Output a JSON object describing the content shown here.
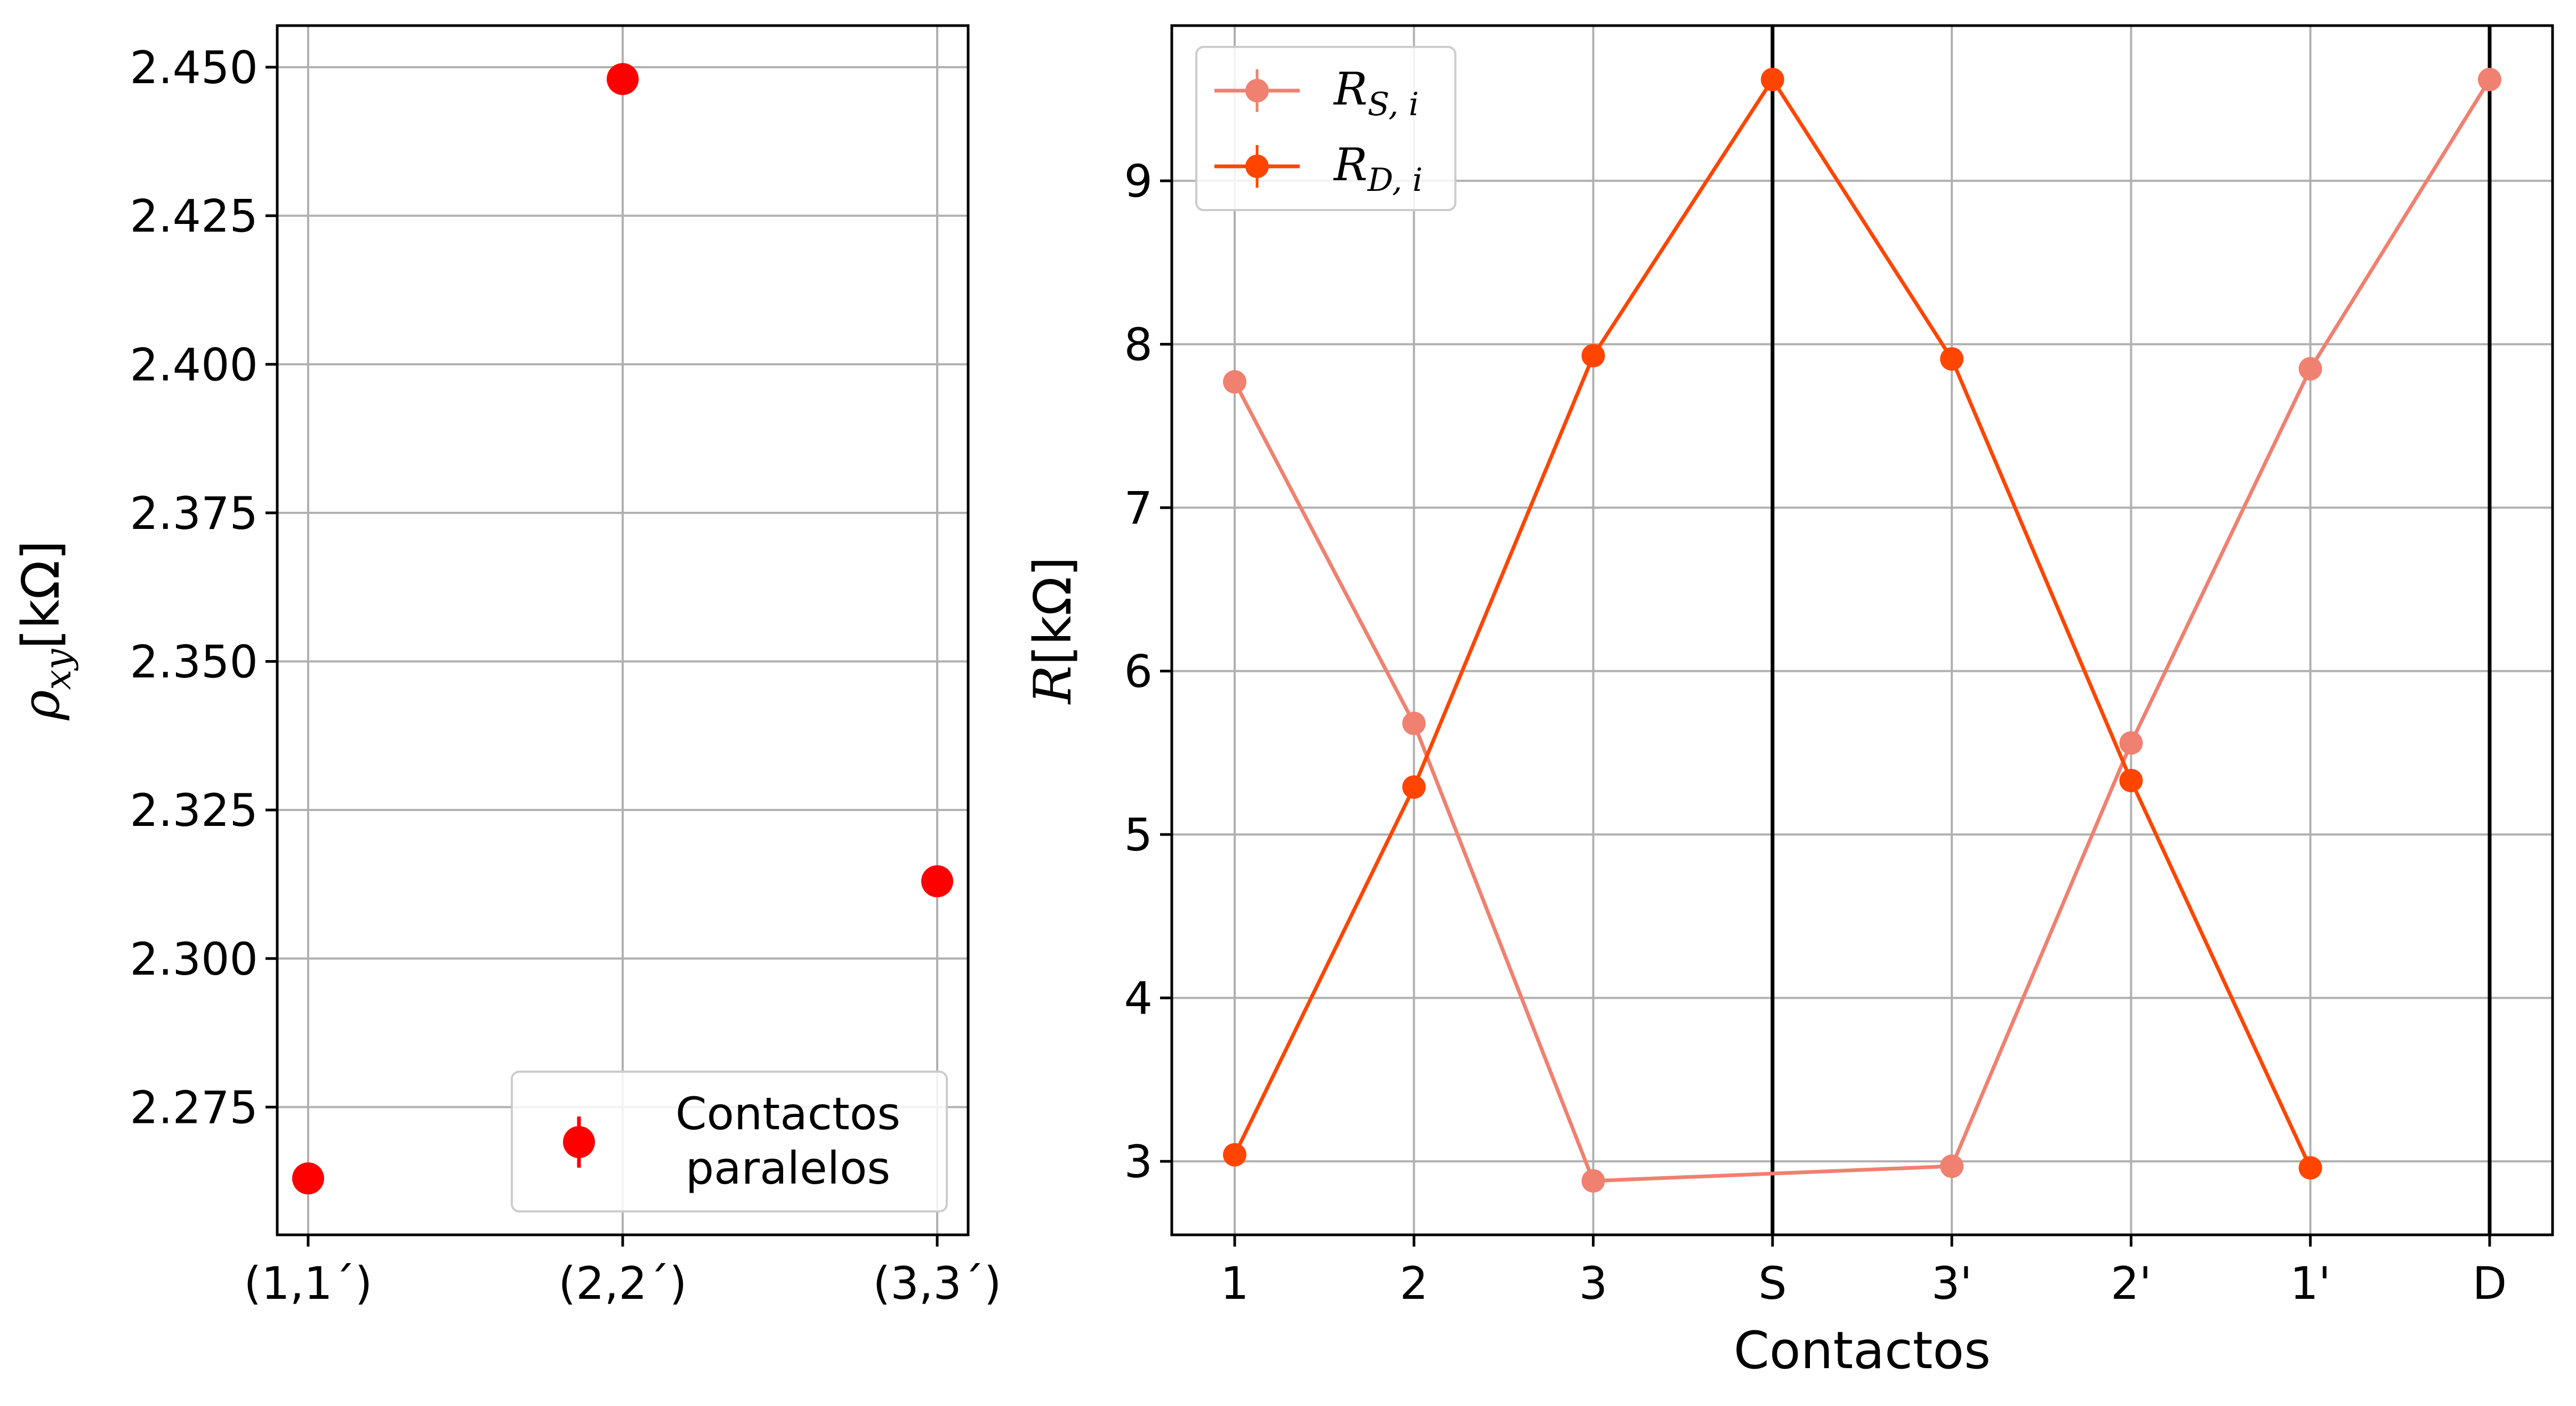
{
  "chart_data": [
    {
      "type": "scatter",
      "title": "",
      "xlabel": "",
      "ylabel_symbol": "ρ",
      "ylabel_subscript": "xy",
      "ylabel_unit": "[kΩ]",
      "categories": [
        "(1,1´)",
        "(2,2´)",
        "(3,3´)"
      ],
      "ylim": [
        2.2535,
        2.457
      ],
      "yticks": [
        2.275,
        2.3,
        2.325,
        2.35,
        2.375,
        2.4,
        2.425,
        2.45
      ],
      "ytick_labels": [
        "2.275",
        "2.300",
        "2.325",
        "2.350",
        "2.375",
        "2.400",
        "2.425",
        "2.450"
      ],
      "grid": true,
      "legend_position": "lower-right",
      "series": [
        {
          "name_line1": "Contactos",
          "name_line2": "paralelos",
          "color": "#ff0000",
          "values": [
            2.263,
            2.448,
            2.313
          ]
        }
      ]
    },
    {
      "type": "line",
      "title": "",
      "xlabel": "Contactos",
      "ylabel_symbol": "R",
      "ylabel_unit": "[kΩ]",
      "categories": [
        "1",
        "2",
        "3",
        "S",
        "3'",
        "2'",
        "1'",
        "D"
      ],
      "ylim": [
        2.55,
        9.95
      ],
      "yticks": [
        3,
        4,
        5,
        6,
        7,
        8,
        9
      ],
      "ytick_labels": [
        "3",
        "4",
        "5",
        "6",
        "7",
        "8",
        "9"
      ],
      "grid": true,
      "vlines_at": [
        "S",
        "D"
      ],
      "legend_position": "upper-left",
      "series": [
        {
          "name_symbol": "R",
          "name_subscript": "S, i",
          "color": "#f08070",
          "points": [
            {
              "x": "1",
              "y": 7.77
            },
            {
              "x": "2",
              "y": 5.68
            },
            {
              "x": "3",
              "y": 2.88
            },
            {
              "x": "3'",
              "y": 2.97
            },
            {
              "x": "2'",
              "y": 5.56
            },
            {
              "x": "1'",
              "y": 7.85
            },
            {
              "x": "D",
              "y": 9.62
            }
          ]
        },
        {
          "name_symbol": "R",
          "name_subscript": "D, i",
          "color": "#ff4500",
          "points": [
            {
              "x": "1",
              "y": 3.04
            },
            {
              "x": "2",
              "y": 5.29
            },
            {
              "x": "3",
              "y": 7.93
            },
            {
              "x": "S",
              "y": 9.62
            },
            {
              "x": "3'",
              "y": 7.91
            },
            {
              "x": "2'",
              "y": 5.33
            },
            {
              "x": "1'",
              "y": 2.96
            }
          ]
        }
      ]
    }
  ]
}
